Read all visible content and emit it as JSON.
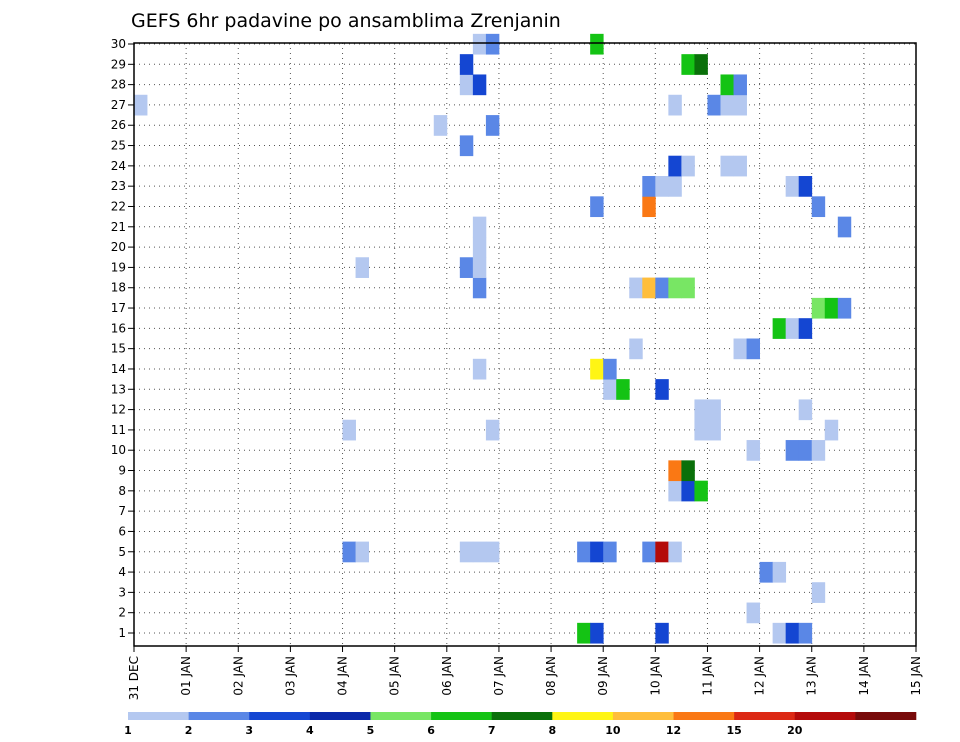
{
  "chart_data": {
    "type": "heatmap",
    "title": "GEFS 6hr padavine po ansamblima Zrenjanin",
    "xlabel": "",
    "ylabel": "",
    "y_ticks": [
      "1",
      "2",
      "3",
      "4",
      "5",
      "6",
      "7",
      "8",
      "9",
      "10",
      "11",
      "12",
      "13",
      "14",
      "15",
      "16",
      "17",
      "18",
      "19",
      "20",
      "21",
      "22",
      "23",
      "24",
      "25",
      "26",
      "27",
      "28",
      "29",
      "30"
    ],
    "x_ticks": [
      "31 DEC",
      "01 JAN",
      "02 JAN",
      "03 JAN",
      "04 JAN",
      "05 JAN",
      "06 JAN",
      "07 JAN",
      "08 JAN",
      "09 JAN",
      "10 JAN",
      "11 JAN",
      "12 JAN",
      "13 JAN",
      "14 JAN",
      "15 JAN"
    ],
    "x_range_days": [
      0,
      15
    ],
    "y_range": [
      1,
      30
    ],
    "grid": true,
    "timestep_hours": 6,
    "colorbar": {
      "levels": [
        "1",
        "2",
        "3",
        "4",
        "5",
        "6",
        "7",
        "8",
        "10",
        "12",
        "15",
        "20"
      ],
      "colors": [
        "#b4c8f0",
        "#5a87e6",
        "#1446d2",
        "#0a28aa",
        "#78e664",
        "#14c314",
        "#0a700a",
        "#fff514",
        "#ffbe3c",
        "#fa7814",
        "#dc2814",
        "#b40a0a",
        "#780a0a"
      ]
    },
    "cells": [
      {
        "m": 1,
        "t": 34,
        "c": 5
      },
      {
        "m": 1,
        "t": 35,
        "c": 2
      },
      {
        "m": 1,
        "t": 40,
        "c": 2
      },
      {
        "m": 1,
        "t": 49,
        "c": 0
      },
      {
        "m": 1,
        "t": 50,
        "c": 2
      },
      {
        "m": 1,
        "t": 51,
        "c": 1
      },
      {
        "m": 2,
        "t": 47,
        "c": 0
      },
      {
        "m": 3,
        "t": 52,
        "c": 0
      },
      {
        "m": 4,
        "t": 48,
        "c": 1
      },
      {
        "m": 4,
        "t": 49,
        "c": 0
      },
      {
        "m": 5,
        "t": 16,
        "c": 1
      },
      {
        "m": 5,
        "t": 17,
        "c": 0
      },
      {
        "m": 5,
        "t": 25,
        "c": 0
      },
      {
        "m": 5,
        "t": 26,
        "c": 0
      },
      {
        "m": 5,
        "t": 27,
        "c": 0
      },
      {
        "m": 5,
        "t": 34,
        "c": 1
      },
      {
        "m": 5,
        "t": 35,
        "c": 2
      },
      {
        "m": 5,
        "t": 36,
        "c": 1
      },
      {
        "m": 5,
        "t": 39,
        "c": 1
      },
      {
        "m": 5,
        "t": 40,
        "c": 11
      },
      {
        "m": 5,
        "t": 41,
        "c": 0
      },
      {
        "m": 8,
        "t": 41,
        "c": 0
      },
      {
        "m": 8,
        "t": 42,
        "c": 2
      },
      {
        "m": 8,
        "t": 43,
        "c": 5
      },
      {
        "m": 9,
        "t": 41,
        "c": 9
      },
      {
        "m": 9,
        "t": 42,
        "c": 6
      },
      {
        "m": 10,
        "t": 47,
        "c": 0
      },
      {
        "m": 10,
        "t": 50,
        "c": 1
      },
      {
        "m": 10,
        "t": 51,
        "c": 1
      },
      {
        "m": 10,
        "t": 52,
        "c": 0
      },
      {
        "m": 11,
        "t": 16,
        "c": 0
      },
      {
        "m": 11,
        "t": 27,
        "c": 0
      },
      {
        "m": 11,
        "t": 43,
        "c": 0
      },
      {
        "m": 11,
        "t": 44,
        "c": 0
      },
      {
        "m": 11,
        "t": 53,
        "c": 0
      },
      {
        "m": 12,
        "t": 43,
        "c": 0
      },
      {
        "m": 12,
        "t": 44,
        "c": 0
      },
      {
        "m": 12,
        "t": 51,
        "c": 0
      },
      {
        "m": 13,
        "t": 36,
        "c": 0
      },
      {
        "m": 13,
        "t": 37,
        "c": 5
      },
      {
        "m": 13,
        "t": 40,
        "c": 2
      },
      {
        "m": 14,
        "t": 26,
        "c": 0
      },
      {
        "m": 14,
        "t": 35,
        "c": 7
      },
      {
        "m": 14,
        "t": 36,
        "c": 1
      },
      {
        "m": 15,
        "t": 38,
        "c": 0
      },
      {
        "m": 15,
        "t": 46,
        "c": 0
      },
      {
        "m": 15,
        "t": 47,
        "c": 1
      },
      {
        "m": 16,
        "t": 49,
        "c": 5
      },
      {
        "m": 16,
        "t": 50,
        "c": 0
      },
      {
        "m": 16,
        "t": 51,
        "c": 2
      },
      {
        "m": 17,
        "t": 52,
        "c": 4
      },
      {
        "m": 17,
        "t": 53,
        "c": 5
      },
      {
        "m": 17,
        "t": 54,
        "c": 1
      },
      {
        "m": 18,
        "t": 26,
        "c": 1
      },
      {
        "m": 18,
        "t": 38,
        "c": 0
      },
      {
        "m": 18,
        "t": 39,
        "c": 8
      },
      {
        "m": 18,
        "t": 40,
        "c": 1
      },
      {
        "m": 18,
        "t": 41,
        "c": 4
      },
      {
        "m": 18,
        "t": 42,
        "c": 4
      },
      {
        "m": 19,
        "t": 17,
        "c": 0
      },
      {
        "m": 19,
        "t": 25,
        "c": 1
      },
      {
        "m": 19,
        "t": 26,
        "c": 0
      },
      {
        "m": 20,
        "t": 26,
        "c": 0
      },
      {
        "m": 21,
        "t": 26,
        "c": 0
      },
      {
        "m": 21,
        "t": 54,
        "c": 1
      },
      {
        "m": 22,
        "t": 35,
        "c": 1
      },
      {
        "m": 22,
        "t": 39,
        "c": 9
      },
      {
        "m": 22,
        "t": 52,
        "c": 1
      },
      {
        "m": 23,
        "t": 39,
        "c": 1
      },
      {
        "m": 23,
        "t": 40,
        "c": 0
      },
      {
        "m": 23,
        "t": 41,
        "c": 0
      },
      {
        "m": 23,
        "t": 50,
        "c": 0
      },
      {
        "m": 23,
        "t": 51,
        "c": 2
      },
      {
        "m": 24,
        "t": 41,
        "c": 2
      },
      {
        "m": 24,
        "t": 42,
        "c": 0
      },
      {
        "m": 24,
        "t": 45,
        "c": 0
      },
      {
        "m": 24,
        "t": 46,
        "c": 0
      },
      {
        "m": 25,
        "t": 25,
        "c": 1
      },
      {
        "m": 26,
        "t": 23,
        "c": 0
      },
      {
        "m": 26,
        "t": 27,
        "c": 1
      },
      {
        "m": 27,
        "t": 0,
        "c": 0
      },
      {
        "m": 27,
        "t": 41,
        "c": 0
      },
      {
        "m": 27,
        "t": 44,
        "c": 1
      },
      {
        "m": 27,
        "t": 45,
        "c": 0
      },
      {
        "m": 27,
        "t": 46,
        "c": 0
      },
      {
        "m": 28,
        "t": 25,
        "c": 0
      },
      {
        "m": 28,
        "t": 26,
        "c": 2
      },
      {
        "m": 28,
        "t": 45,
        "c": 5
      },
      {
        "m": 28,
        "t": 46,
        "c": 1
      },
      {
        "m": 29,
        "t": 25,
        "c": 2
      },
      {
        "m": 29,
        "t": 42,
        "c": 5
      },
      {
        "m": 29,
        "t": 43,
        "c": 6
      },
      {
        "m": 30,
        "t": 26,
        "c": 0
      },
      {
        "m": 30,
        "t": 27,
        "c": 1
      },
      {
        "m": 30,
        "t": 35,
        "c": 5
      }
    ],
    "overlays": [
      {
        "m": 22,
        "t": 41,
        "c": 9,
        "frac": 0.5
      },
      {
        "m": 18,
        "t": 43,
        "c": 4,
        "frac": 0.0
      }
    ]
  }
}
